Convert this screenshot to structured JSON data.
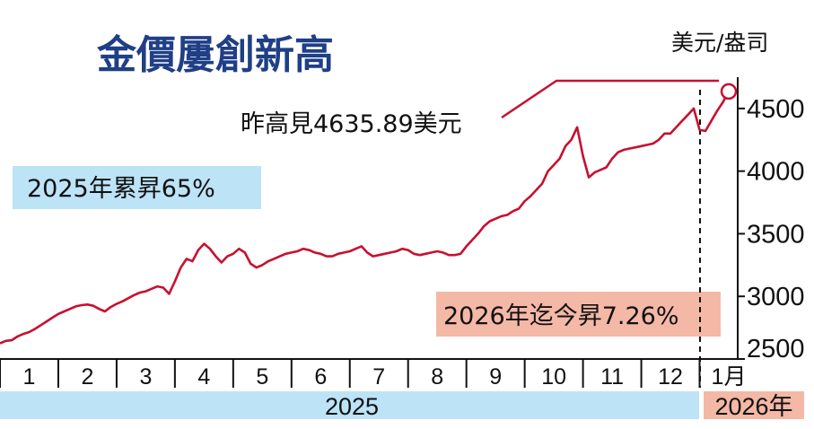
{
  "chart_data": {
    "type": "line",
    "title": "金價屢創新高",
    "unit": "美元/盎司",
    "ylim": [
      2500,
      4750
    ],
    "yticks": [
      2500,
      3000,
      3500,
      4000,
      4500
    ],
    "month_labels": [
      "1",
      "2",
      "3",
      "4",
      "5",
      "6",
      "7",
      "8",
      "9",
      "10",
      "11",
      "12",
      "1月"
    ],
    "year_labels": [
      "2025",
      "2026年"
    ],
    "annotations": {
      "peak": "昨高見4635.89美元",
      "ytd_2025": "2025年累昇65%",
      "ytd_2026": "2026年迄今昇7.26%"
    },
    "line_color": "#c8102e",
    "colors": {
      "title": "#1f3f86",
      "band_blue": "#bde3f7",
      "band_pink": "#f4b8a6"
    },
    "series": [
      {
        "x": [
          0,
          0.1,
          0.2,
          0.3,
          0.4,
          0.5,
          0.6,
          0.7,
          0.8,
          0.9,
          1.0,
          1.1,
          1.2,
          1.3,
          1.4,
          1.5,
          1.6,
          1.7,
          1.8,
          1.9,
          2.0,
          2.1,
          2.2,
          2.3,
          2.4,
          2.5,
          2.6,
          2.7,
          2.8,
          2.9,
          3.0,
          3.1,
          3.2,
          3.3,
          3.4,
          3.5,
          3.6,
          3.7,
          3.8,
          3.9,
          4.0,
          4.1,
          4.2,
          4.3,
          4.4,
          4.5,
          4.6,
          4.7,
          4.8,
          4.9,
          5.0,
          5.1,
          5.2,
          5.3,
          5.4,
          5.5,
          5.6,
          5.7,
          5.8,
          5.9,
          6.0,
          6.1,
          6.2,
          6.3,
          6.4,
          6.5,
          6.6,
          6.7,
          6.8,
          6.9,
          7.0,
          7.1,
          7.2,
          7.3,
          7.4,
          7.5,
          7.6,
          7.7,
          7.8,
          7.9,
          8.0,
          8.1,
          8.2,
          8.3,
          8.4,
          8.5,
          8.6,
          8.7,
          8.8,
          8.9,
          9.0,
          9.1,
          9.2,
          9.3,
          9.4,
          9.5,
          9.6,
          9.7,
          9.8,
          9.9,
          10.0,
          10.1,
          10.2,
          10.3,
          10.4,
          10.5,
          10.6,
          10.7,
          10.8,
          10.9,
          11.0,
          11.1,
          11.2,
          11.3,
          11.4,
          11.5,
          11.6,
          11.7,
          11.8,
          11.9,
          12.0,
          12.1,
          12.2,
          12.3,
          12.4,
          12.5
        ],
        "values": [
          2625,
          2645,
          2650,
          2680,
          2700,
          2715,
          2740,
          2770,
          2800,
          2830,
          2860,
          2880,
          2900,
          2920,
          2930,
          2935,
          2925,
          2900,
          2880,
          2915,
          2940,
          2960,
          2985,
          3010,
          3030,
          3040,
          3060,
          3080,
          3070,
          3020,
          3120,
          3230,
          3300,
          3280,
          3370,
          3420,
          3380,
          3320,
          3270,
          3320,
          3340,
          3380,
          3350,
          3260,
          3230,
          3250,
          3280,
          3300,
          3320,
          3340,
          3350,
          3360,
          3380,
          3370,
          3350,
          3340,
          3320,
          3320,
          3340,
          3350,
          3360,
          3380,
          3400,
          3350,
          3320,
          3330,
          3340,
          3350,
          3360,
          3380,
          3370,
          3340,
          3330,
          3340,
          3350,
          3360,
          3350,
          3330,
          3330,
          3340,
          3400,
          3450,
          3500,
          3560,
          3600,
          3620,
          3640,
          3650,
          3680,
          3700,
          3760,
          3800,
          3850,
          3900,
          4000,
          4050,
          4100,
          4200,
          4250,
          4350,
          4120,
          3950,
          3990,
          4010,
          4030,
          4100,
          4150,
          4170,
          4180,
          4190,
          4200,
          4210,
          4220,
          4250,
          4300,
          4300,
          4350,
          4400,
          4450,
          4500,
          4330,
          4320,
          4400,
          4480,
          4550,
          4636
        ]
      }
    ]
  }
}
